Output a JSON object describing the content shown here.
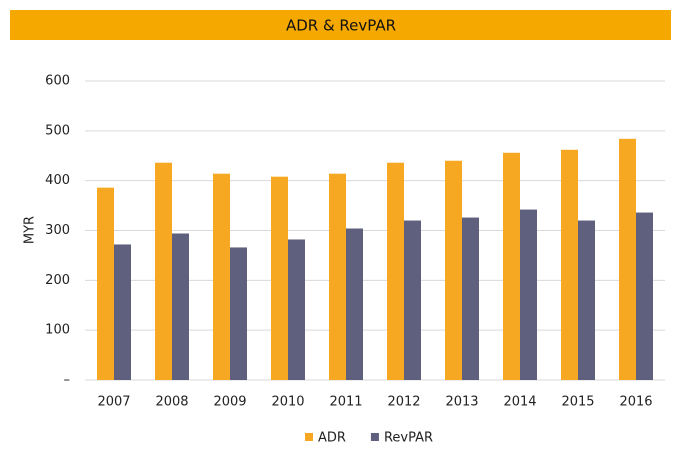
{
  "chart_data": {
    "type": "bar",
    "title": "ADR & RevPAR",
    "y_label": "MYR",
    "categories": [
      "2007",
      "2008",
      "2009",
      "2010",
      "2011",
      "2012",
      "2013",
      "2014",
      "2015",
      "2016"
    ],
    "series": [
      {
        "name": "ADR",
        "color": "#f7a823",
        "values": [
          386,
          436,
          414,
          408,
          414,
          436,
          440,
          456,
          462,
          484
        ]
      },
      {
        "name": "RevPAR",
        "color": "#5f5f7e",
        "values": [
          272,
          294,
          266,
          282,
          304,
          320,
          326,
          342,
          320,
          336
        ]
      }
    ],
    "ylim": [
      0,
      600
    ],
    "yticks": [
      {
        "value": 0,
        "label": "–"
      },
      100,
      200,
      300,
      400,
      500,
      600
    ],
    "grid": true,
    "legend": "bottom",
    "title_background": "#f5a800"
  }
}
